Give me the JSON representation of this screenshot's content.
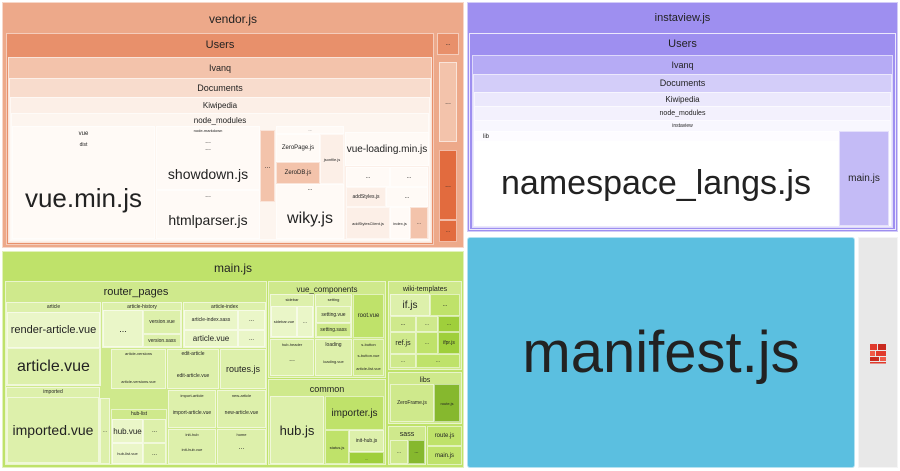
{
  "chart_data": {
    "type": "treemap",
    "title": "",
    "bundles": [
      {
        "name": "vendor.js",
        "color": "#eda98a",
        "path": [
          "Users",
          "Ivanq",
          "Documents",
          "Kiwipedia",
          "node_modules"
        ],
        "children": [
          "vue",
          "dist",
          "vue.min.js",
          "showdown.js",
          "htmlparser.js",
          "ZeroPage.js",
          "ZeroDB.js",
          "wiky.js",
          "vue-loading.min.js",
          "addStyles.js",
          "addStylesClient.js",
          "index.js"
        ]
      },
      {
        "name": "instaview.js",
        "color": "#9e8ff0",
        "path": [
          "Users",
          "Ivanq",
          "Documents",
          "Kiwipedia",
          "node_modules",
          "instaview",
          "lib"
        ],
        "children": [
          "namespace_langs.js",
          "main.js"
        ]
      },
      {
        "name": "main.js",
        "color": "#bfe26a",
        "groups": [
          {
            "name": "router_pages",
            "children": [
              "article",
              "render-article.vue",
              "article.vue",
              "article-history",
              "version.vue",
              "version.sass",
              "article-index",
              "article-index.sass",
              "article-versions",
              "article-versions.vue",
              "edit-article",
              "edit-article.vue",
              "routes.js",
              "imported",
              "imported.vue",
              "hub-list",
              "hub.vue",
              "hub-list.vue",
              "import-article",
              "import-article.vue",
              "new-article",
              "new-article.vue",
              "init-hub",
              "init-hub.vue",
              "home",
              "home.vue"
            ]
          },
          {
            "name": "vue_components",
            "children": [
              "sidebar",
              "sidebar.vue",
              "setting",
              "setting.vue",
              "setting.sass",
              "root.vue",
              "hub-header",
              "loading",
              "loading.vue",
              "s-button",
              "s-button.vue",
              "article-list.vue"
            ]
          },
          {
            "name": "common",
            "children": [
              "hub.js",
              "importer.js",
              "init-hub.js",
              "status.js"
            ]
          },
          {
            "name": "wiki-templates",
            "children": [
              "if.js",
              "ref.js",
              "ifpr.js"
            ]
          },
          {
            "name": "libs",
            "children": [
              "ZeroFrame.js",
              "route.js"
            ]
          },
          {
            "name": "sass",
            "children": [
              "route.js",
              "main.js"
            ]
          }
        ]
      },
      {
        "name": "manifest.js",
        "color": "#5bbfe0",
        "children": []
      }
    ]
  },
  "labels": {
    "vendor": "vendor.js",
    "users": "Users",
    "ivanq": "Ivanq",
    "documents": "Documents",
    "kiwipedia": "Kiwipedia",
    "node_modules": "node_modules",
    "vue": "vue",
    "dist": "dist",
    "vue_min": "vue.min.js",
    "showdown": "showdown.js",
    "htmlparser": "htmlparser.js",
    "zeropage": "ZeroPage.js",
    "zerodb": "ZeroDB.js",
    "wiky": "wiky.js",
    "vue_loading": "vue-loading.min.js",
    "addstyles": "addStyles.js",
    "addstylesclient": "addStylesClient.js",
    "index": "index.js",
    "jsonfile": "jsonfile.js",
    "node_markdown": "node-markdown",
    "instaview": "instaview.js",
    "instaview_dir": "instaview",
    "lib": "lib",
    "namespace_langs": "namespace_langs.js",
    "insta_main": "main.js",
    "main": "main.js",
    "router_pages": "router_pages",
    "article": "article",
    "render_article": "render-article.vue",
    "article_vue": "article.vue",
    "article_history": "article-history",
    "version_vue": "version.vue",
    "version_sass": "version.sass",
    "article_index": "article-index",
    "article_index_sass": "article-index.sass",
    "article_versions": "article-versions",
    "article_versions_vue": "article-versions.vue",
    "edit_article": "edit-article",
    "edit_article_vue": "edit-article.vue",
    "routes": "routes.js",
    "imported": "imported",
    "imported_vue": "imported.vue",
    "hub_list": "hub-list",
    "hub_vue": "hub.vue",
    "hub_list_vue": "hub-list.vue",
    "import_article": "import-article",
    "import_article_vue": "import-article.vue",
    "new_article": "new-article",
    "new_article_vue": "new-article.vue",
    "init_hub": "init-hub",
    "init_hub_vue": "init-hub.vue",
    "home": "home",
    "home_vue": "home.vue",
    "vue_components": "vue_components",
    "sidebar": "sidebar",
    "sidebar_vue": "sidebar.vue",
    "setting": "setting",
    "setting_vue": "setting.vue",
    "setting_sass": "setting.sass",
    "root_vue": "root.vue",
    "hub_header": "hub-header",
    "loading": "loading",
    "loading_vue": "loading.vue",
    "s_button": "s-button",
    "s_button_vue": "s-button.vue",
    "article_list_vue": "article-list.vue",
    "common": "common",
    "hub_js": "hub.js",
    "importer": "importer.js",
    "init_hub_js": "init-hub.js",
    "status": "status.js",
    "wiki_templates": "wiki-templates",
    "if_js": "if.js",
    "ref_js": "ref.js",
    "ifpr_js": "ifpr.js",
    "libs": "libs",
    "zeroframe": "ZeroFrame.js",
    "route_js": "route.js",
    "sass": "sass",
    "route_js2": "route.js",
    "main_js_small": "main.js",
    "manifest": "manifest.js",
    "ellipsis": "..."
  },
  "colors": {
    "vendor": "#eda98a",
    "vendor_dark": "#e8906b",
    "vendor_mid": "#f3c3ab",
    "vendor_light": "#f8dccd",
    "vendor_pale": "#fcefe7",
    "vendor_leaf": "#fffaf6",
    "vendor_strip": "#e26b3e",
    "instaview": "#9e8ff0",
    "instaview_mid": "#b6abf5",
    "instaview_light": "#d3cdf9",
    "instaview_pale": "#ebe8fc",
    "instaview_leaf": "#fdfcff",
    "instaview_small": "#c4bbf6",
    "main": "#bfe26a",
    "main_mid": "#cfe98c",
    "main_light": "#ddf0ab",
    "main_pale": "#eaf6c8",
    "main_dark": "#9fcf3b",
    "main_deep": "#86b82e",
    "manifest": "#5bbfe0",
    "chunk_grey": "#e8e8e8",
    "chunk_icon": "#e03a2c"
  },
  "icons": {
    "chunk": "red-blocks-icon"
  }
}
